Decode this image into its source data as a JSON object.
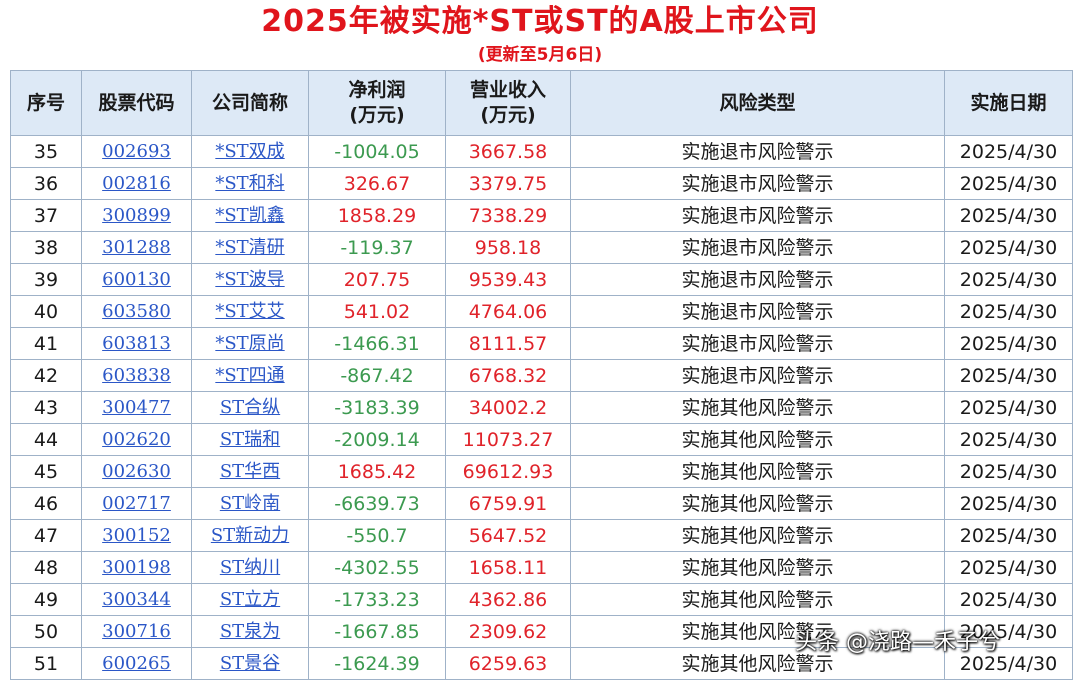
{
  "title": "2025年被实施*ST或ST的A股上市公司",
  "subtitle": "(更新至5月6日)",
  "columns": {
    "idx": "序号",
    "code": "股票代码",
    "name": "公司简称",
    "net_profit_1": "净利润",
    "net_profit_2": "(万元)",
    "revenue_1": "营业收入",
    "revenue_2": "(万元)",
    "risk": "风险类型",
    "date": "实施日期"
  },
  "colors": {
    "title": "#e0151c",
    "header_bg": "#dde9f6",
    "link": "#2b57c7",
    "negative": "#3c9a50",
    "positive": "#e0232a"
  },
  "rows": [
    {
      "idx": "35",
      "code": "002693",
      "name": "*ST双成",
      "net_profit": "-1004.05",
      "revenue": "3667.58",
      "risk": "实施退市风险警示",
      "date": "2025/4/30"
    },
    {
      "idx": "36",
      "code": "002816",
      "name": "*ST和科",
      "net_profit": "326.67",
      "revenue": "3379.75",
      "risk": "实施退市风险警示",
      "date": "2025/4/30"
    },
    {
      "idx": "37",
      "code": "300899",
      "name": "*ST凯鑫",
      "net_profit": "1858.29",
      "revenue": "7338.29",
      "risk": "实施退市风险警示",
      "date": "2025/4/30"
    },
    {
      "idx": "38",
      "code": "301288",
      "name": "*ST清研",
      "net_profit": "-119.37",
      "revenue": "958.18",
      "risk": "实施退市风险警示",
      "date": "2025/4/30"
    },
    {
      "idx": "39",
      "code": "600130",
      "name": "*ST波导",
      "net_profit": "207.75",
      "revenue": "9539.43",
      "risk": "实施退市风险警示",
      "date": "2025/4/30"
    },
    {
      "idx": "40",
      "code": "603580",
      "name": "*ST艾艾",
      "net_profit": "541.02",
      "revenue": "4764.06",
      "risk": "实施退市风险警示",
      "date": "2025/4/30"
    },
    {
      "idx": "41",
      "code": "603813",
      "name": "*ST原尚",
      "net_profit": "-1466.31",
      "revenue": "8111.57",
      "risk": "实施退市风险警示",
      "date": "2025/4/30"
    },
    {
      "idx": "42",
      "code": "603838",
      "name": "*ST四通",
      "net_profit": "-867.42",
      "revenue": "6768.32",
      "risk": "实施退市风险警示",
      "date": "2025/4/30"
    },
    {
      "idx": "43",
      "code": "300477",
      "name": "ST合纵",
      "net_profit": "-3183.39",
      "revenue": "34002.2",
      "risk": "实施其他风险警示",
      "date": "2025/4/30"
    },
    {
      "idx": "44",
      "code": "002620",
      "name": "ST瑞和",
      "net_profit": "-2009.14",
      "revenue": "11073.27",
      "risk": "实施其他风险警示",
      "date": "2025/4/30"
    },
    {
      "idx": "45",
      "code": "002630",
      "name": "ST华西",
      "net_profit": "1685.42",
      "revenue": "69612.93",
      "risk": "实施其他风险警示",
      "date": "2025/4/30"
    },
    {
      "idx": "46",
      "code": "002717",
      "name": "ST岭南",
      "net_profit": "-6639.73",
      "revenue": "6759.91",
      "risk": "实施其他风险警示",
      "date": "2025/4/30"
    },
    {
      "idx": "47",
      "code": "300152",
      "name": "ST新动力",
      "net_profit": "-550.7",
      "revenue": "5647.52",
      "risk": "实施其他风险警示",
      "date": "2025/4/30"
    },
    {
      "idx": "48",
      "code": "300198",
      "name": "ST纳川",
      "net_profit": "-4302.55",
      "revenue": "1658.11",
      "risk": "实施其他风险警示",
      "date": "2025/4/30"
    },
    {
      "idx": "49",
      "code": "300344",
      "name": "ST立方",
      "net_profit": "-1733.23",
      "revenue": "4362.86",
      "risk": "实施其他风险警示",
      "date": "2025/4/30"
    },
    {
      "idx": "50",
      "code": "300716",
      "name": "ST泉为",
      "net_profit": "-1667.85",
      "revenue": "2309.62",
      "risk": "实施其他风险警示",
      "date": "2025/4/30"
    },
    {
      "idx": "51",
      "code": "600265",
      "name": "ST景谷",
      "net_profit": "-1624.39",
      "revenue": "6259.63",
      "risk": "实施其他风险警示",
      "date": "2025/4/30"
    }
  ],
  "watermark": "头条 @浇路—禾子兮"
}
